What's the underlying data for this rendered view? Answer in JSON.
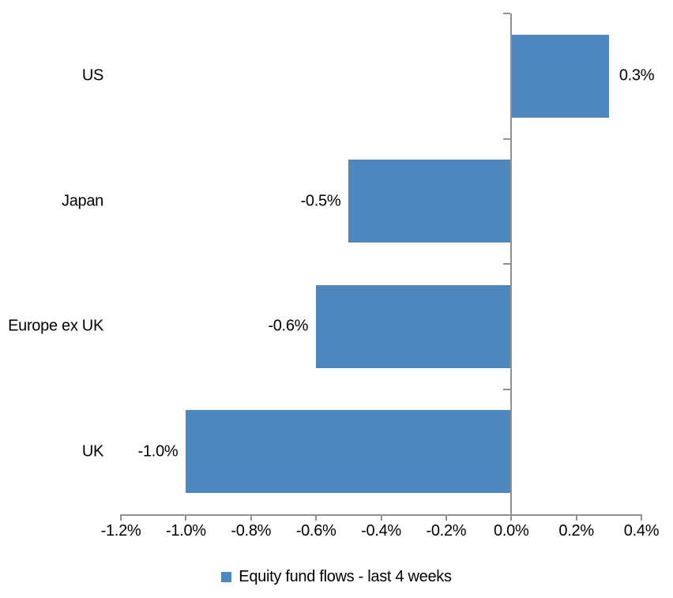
{
  "chart_data": {
    "type": "bar",
    "orientation": "horizontal",
    "title": "",
    "categories": [
      "US",
      "Japan",
      "Europe ex UK",
      "UK"
    ],
    "values": [
      0.3,
      -0.5,
      -0.6,
      -1.0
    ],
    "data_labels": [
      "0.3%",
      "-0.5%",
      "-0.6%",
      "-1.0%"
    ],
    "xlabel": "",
    "ylabel": "",
    "xlim": [
      -1.2,
      0.4
    ],
    "x_tick_values": [
      -1.2,
      -1.0,
      -0.8,
      -0.6,
      -0.4,
      -0.2,
      0.0,
      0.2,
      0.4
    ],
    "x_tick_labels": [
      "-1.2%",
      "-1.0%",
      "-0.8%",
      "-0.6%",
      "-0.4%",
      "-0.2%",
      "0.0%",
      "0.2%",
      "0.4%"
    ],
    "grid": false,
    "legend": {
      "position": "bottom",
      "entries": [
        {
          "label": "Equity fund flows - last 4 weeks",
          "marker": "square",
          "color": "#4E86BE"
        }
      ]
    },
    "colors": {
      "bar": "#4E86BE",
      "axis": "#919191",
      "text": "#000000",
      "background": "#FFFFFF"
    }
  }
}
